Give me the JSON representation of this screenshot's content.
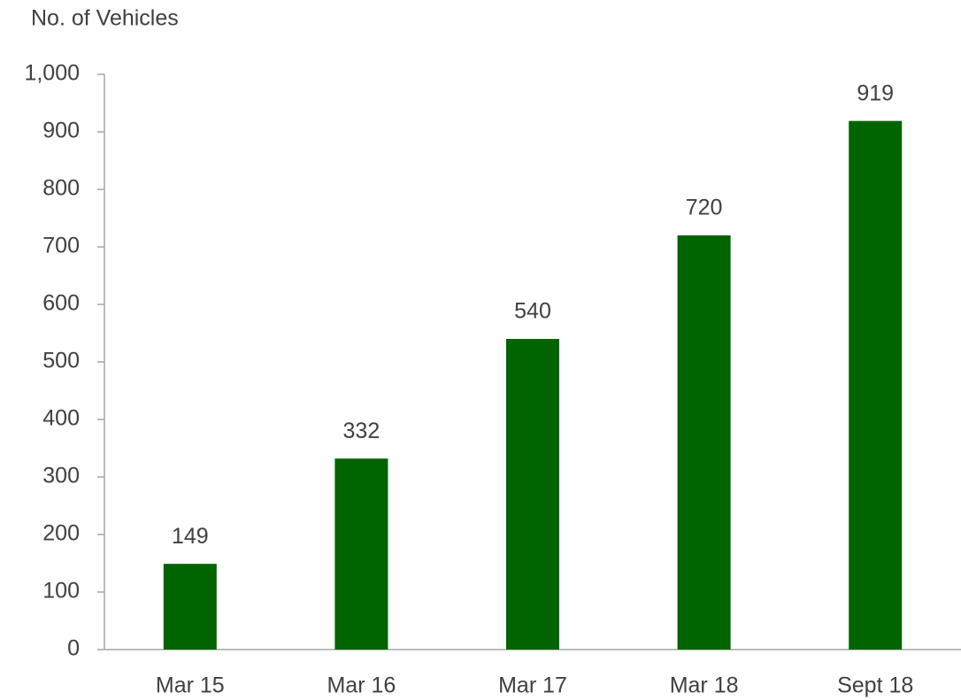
{
  "chart_data": {
    "type": "bar",
    "y_label": "No. of Vehicles",
    "categories": [
      "Mar 15",
      "Mar 16",
      "Mar 17",
      "Mar 18",
      "Sept 18"
    ],
    "values": [
      149,
      332,
      540,
      720,
      919
    ],
    "color": "#006400",
    "ylim": [
      0,
      1000
    ],
    "yticks": [
      0,
      100,
      200,
      300,
      400,
      500,
      600,
      700,
      800,
      900,
      {
        "value": 1000,
        "label": "1,000"
      }
    ],
    "grid": false,
    "data_labels": true
  }
}
